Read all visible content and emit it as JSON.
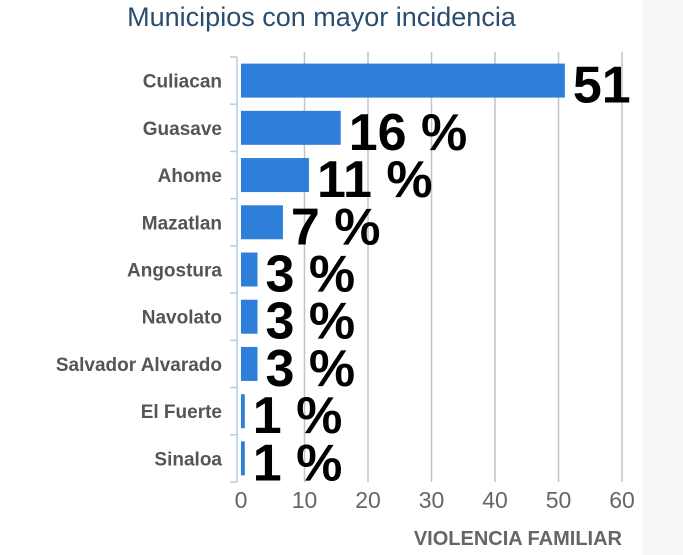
{
  "chart_data": {
    "type": "bar",
    "orientation": "horizontal",
    "title": "Municipios con mayor incidencia",
    "xlabel": "VIOLENCIA FAMILIAR",
    "ylabel": "",
    "categories": [
      "Culiacan",
      "Guasave",
      "Ahome",
      "Mazatlan",
      "Angostura",
      "Navolato",
      "Salvador Alvarado",
      "El Fuerte",
      "Sinaloa"
    ],
    "values": [
      51,
      16,
      11,
      7,
      3,
      3,
      3,
      1,
      1
    ],
    "bar_lengths": [
      51,
      15.7,
      10.7,
      6.6,
      2.6,
      2.6,
      2.6,
      0.6,
      0.6
    ],
    "data_labels": [
      "51",
      "16 %",
      "11 %",
      "7 %",
      "3 %",
      "3 %",
      "3 %",
      "1 %",
      "1 %"
    ],
    "xlim": [
      0,
      60
    ],
    "xticks": [
      "0",
      "10",
      "20",
      "30",
      "40",
      "50",
      "60"
    ],
    "grid": true,
    "bar_color": "#2e7fd9"
  }
}
